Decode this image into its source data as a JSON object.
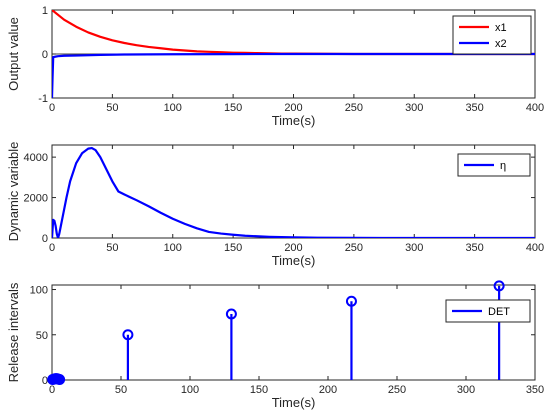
{
  "chart_data": [
    {
      "type": "line",
      "xlabel": "Time(s)",
      "ylabel": "Output value",
      "xlim": [
        0,
        400
      ],
      "ylim": [
        -1,
        1
      ],
      "xticks": [
        0,
        50,
        100,
        150,
        200,
        250,
        300,
        350,
        400
      ],
      "yticks": [
        -1,
        0,
        1
      ],
      "legend_position": "top-right",
      "series": [
        {
          "name": "x1",
          "color": "#ff0000",
          "x": [
            0,
            10,
            20,
            30,
            40,
            50,
            60,
            70,
            80,
            90,
            100,
            110,
            120,
            130,
            140,
            150,
            160,
            170,
            180,
            190,
            200,
            220,
            250,
            300,
            350,
            400
          ],
          "y": [
            1.0,
            0.78,
            0.62,
            0.49,
            0.39,
            0.31,
            0.25,
            0.2,
            0.16,
            0.13,
            0.1,
            0.08,
            0.06,
            0.05,
            0.04,
            0.03,
            0.025,
            0.02,
            0.015,
            0.01,
            0.008,
            0.005,
            0.0,
            0.0,
            0.0,
            0.0
          ]
        },
        {
          "name": "x2",
          "color": "#0000ff",
          "x": [
            0,
            0.5,
            1,
            3,
            5,
            10,
            20,
            40,
            60,
            80,
            100,
            150,
            200,
            300,
            400
          ],
          "y": [
            -1.0,
            -0.5,
            -0.07,
            -0.06,
            -0.05,
            -0.04,
            -0.035,
            -0.02,
            -0.012,
            -0.008,
            -0.005,
            -0.002,
            0.0,
            0.0,
            0.0
          ]
        }
      ]
    },
    {
      "type": "line",
      "xlabel": "Time(s)",
      "ylabel": "Dynamic variable",
      "xlim": [
        0,
        400
      ],
      "ylim": [
        0,
        4600
      ],
      "xticks": [
        0,
        50,
        100,
        150,
        200,
        250,
        300,
        350,
        400
      ],
      "yticks": [
        0,
        2000,
        4000
      ],
      "legend_position": "top-right",
      "series": [
        {
          "name": "η",
          "color": "#0000ff",
          "x": [
            0,
            1,
            2,
            3,
            4,
            5,
            6,
            7,
            8,
            10,
            12,
            15,
            20,
            25,
            30,
            33,
            36,
            40,
            45,
            50,
            55,
            60,
            70,
            80,
            90,
            100,
            110,
            120,
            130,
            140,
            150,
            160,
            180,
            200,
            220,
            250,
            300,
            350,
            400
          ],
          "y": [
            0,
            900,
            850,
            600,
            200,
            0,
            200,
            500,
            800,
            1400,
            2000,
            2800,
            3700,
            4200,
            4420,
            4450,
            4350,
            4000,
            3400,
            2800,
            2300,
            2150,
            1870,
            1570,
            1250,
            950,
            700,
            480,
            300,
            220,
            160,
            110,
            60,
            30,
            15,
            5,
            0,
            0,
            0
          ]
        }
      ]
    },
    {
      "type": "stem",
      "xlabel": "Time(s)",
      "ylabel": "Release intervals",
      "xlim": [
        0,
        350
      ],
      "ylim": [
        0,
        105
      ],
      "xticks": [
        0,
        50,
        100,
        150,
        200,
        250,
        300,
        350
      ],
      "yticks": [
        0,
        50,
        100
      ],
      "legend_position": "top-right",
      "series": [
        {
          "name": "DET",
          "color": "#0000ff",
          "x": [
            0.5,
            1.5,
            2.5,
            3.5,
            4.5,
            5.5,
            55,
            130,
            217,
            324
          ],
          "y": [
            0.5,
            1,
            1.5,
            1.5,
            1,
            0.5,
            50,
            73,
            87,
            104
          ]
        }
      ]
    }
  ],
  "panels": [
    {
      "ylabel": "Output value",
      "xlabel": "Time(s)",
      "xtick_labels": [
        "0",
        "50",
        "100",
        "150",
        "200",
        "250",
        "300",
        "350",
        "400"
      ],
      "ytick_labels": [
        "-1",
        "0",
        "1"
      ],
      "legend": [
        "x1",
        "x2"
      ]
    },
    {
      "ylabel": "Dynamic variable",
      "xlabel": "Time(s)",
      "xtick_labels": [
        "0",
        "50",
        "100",
        "150",
        "200",
        "250",
        "300",
        "350",
        "400"
      ],
      "ytick_labels": [
        "0",
        "2000",
        "4000"
      ],
      "legend": [
        "η"
      ]
    },
    {
      "ylabel": "Release intervals",
      "xlabel": "Time(s)",
      "xtick_labels": [
        "0",
        "50",
        "100",
        "150",
        "200",
        "250",
        "300",
        "350"
      ],
      "ytick_labels": [
        "0",
        "50",
        "100"
      ],
      "legend": [
        "DET"
      ]
    }
  ]
}
